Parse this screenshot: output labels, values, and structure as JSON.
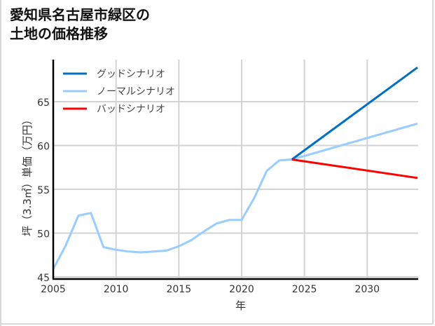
{
  "title_lines": [
    "愛知県名古屋市緑区の",
    "土地の価格推移"
  ],
  "chart_data": {
    "type": "line",
    "title": "愛知県名古屋市緑区の土地の価格推移",
    "xlabel": "年",
    "ylabel": "坪（3.3㎡）単価（万円）",
    "xlim": [
      2005,
      2034
    ],
    "ylim": [
      45,
      69
    ],
    "x_ticks": [
      2005,
      2010,
      2015,
      2020,
      2025,
      2030
    ],
    "y_ticks": [
      45,
      50,
      55,
      60,
      65
    ],
    "grid": true,
    "legend_position": "upper left",
    "series": [
      {
        "name": "グッドシナリオ",
        "color": "#0070c0",
        "x": [
          2024,
          2034
        ],
        "values": [
          58.4,
          68.9
        ]
      },
      {
        "name": "ノーマルシナリオ",
        "color": "#99ccff",
        "x": [
          2005,
          2006,
          2007,
          2008,
          2009,
          2010,
          2011,
          2012,
          2013,
          2014,
          2015,
          2016,
          2017,
          2018,
          2019,
          2020,
          2021,
          2022,
          2023,
          2024,
          2034
        ],
        "values": [
          45.9,
          48.6,
          52.0,
          52.3,
          48.4,
          48.1,
          47.9,
          47.8,
          47.9,
          48.0,
          48.5,
          49.2,
          50.2,
          51.1,
          51.5,
          51.5,
          54.0,
          57.1,
          58.3,
          58.4,
          62.5
        ]
      },
      {
        "name": "バッドシナリオ",
        "color": "#ff0000",
        "x": [
          2024,
          2034
        ],
        "values": [
          58.4,
          56.3
        ]
      }
    ]
  }
}
